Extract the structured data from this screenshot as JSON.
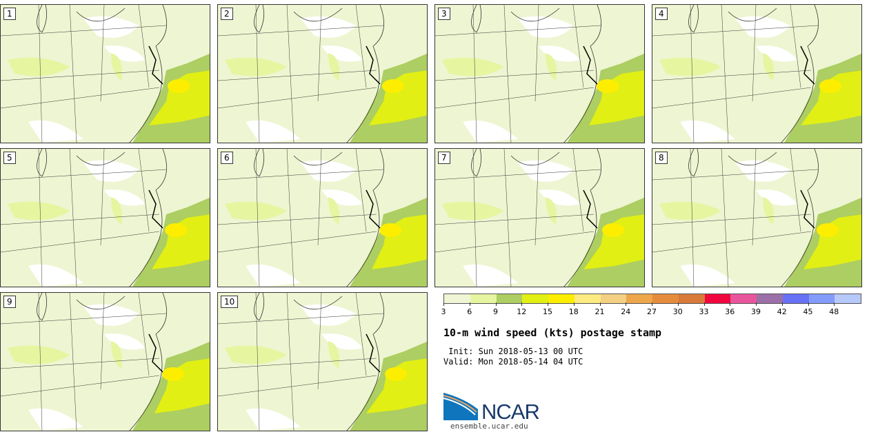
{
  "chart_data": {
    "type": "heatmap",
    "title": "10-m wind speed (kts) postage stamp",
    "init": " Init: Sun 2018-05-13 00 UTC",
    "valid": "Valid: Mon 2018-05-14 04 UTC",
    "panels": [
      "1",
      "2",
      "3",
      "4",
      "5",
      "6",
      "7",
      "8",
      "9",
      "10"
    ],
    "colorbar": {
      "ticks": [
        "3",
        "6",
        "9",
        "12",
        "15",
        "18",
        "21",
        "24",
        "27",
        "30",
        "33",
        "36",
        "39",
        "42",
        "45",
        "48"
      ],
      "colors": [
        "#eff5d5",
        "#e6f5a0",
        "#acce62",
        "#e1ef14",
        "#fdee00",
        "#fdea82",
        "#f3d082",
        "#eda64a",
        "#e58c3c",
        "#d97a3a",
        "#f0073d",
        "#e9559d",
        "#9b6fa8",
        "#6671f5",
        "#839bfb",
        "#b7c8fa"
      ]
    }
  },
  "logo": {
    "name": "NCAR",
    "url": "ensemble.ucar.edu"
  }
}
